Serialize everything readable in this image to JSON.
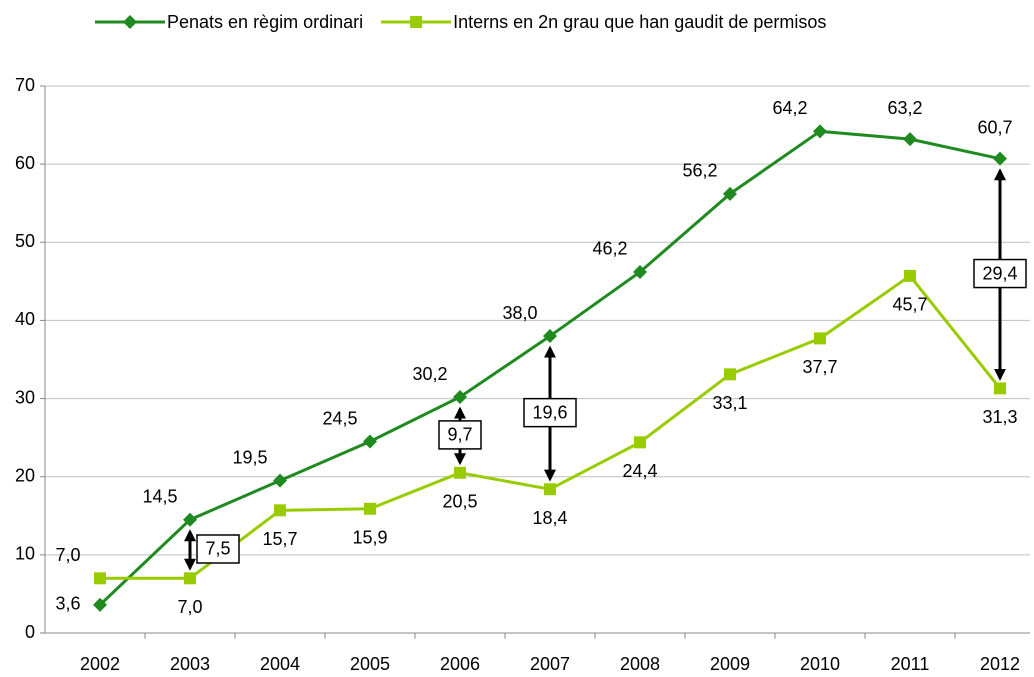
{
  "chart_data": {
    "type": "line",
    "categories": [
      "2002",
      "2003",
      "2004",
      "2005",
      "2006",
      "2007",
      "2008",
      "2009",
      "2010",
      "2011",
      "2012"
    ],
    "series": [
      {
        "name": "Penats en règim ordinari",
        "color": "#1f8a1f",
        "marker": "diamond",
        "values": [
          3.6,
          14.5,
          19.5,
          24.5,
          30.2,
          38.0,
          46.2,
          56.2,
          64.2,
          63.2,
          60.7
        ],
        "value_labels": [
          "3,6",
          "14,5",
          "19,5",
          "24,5",
          "30,2",
          "38,0",
          "46,2",
          "56,2",
          "64,2",
          "63,2",
          "60,7"
        ]
      },
      {
        "name": "Interns en 2n grau que han gaudit de permisos",
        "color": "#99cc00",
        "marker": "square",
        "values": [
          7.0,
          7.0,
          15.7,
          15.9,
          20.5,
          18.4,
          24.4,
          33.1,
          37.7,
          45.7,
          31.3
        ],
        "value_labels": [
          "7,0",
          "7,0",
          "15,7",
          "15,9",
          "20,5",
          "18,4",
          "24,4",
          "33,1",
          "37,7",
          "45,7",
          "31,3"
        ]
      }
    ],
    "annotations": [
      {
        "category": "2003",
        "value": 7.5,
        "label": "7,5"
      },
      {
        "category": "2006",
        "value": 9.7,
        "label": "9,7"
      },
      {
        "category": "2007",
        "value": 19.6,
        "label": "19,6"
      },
      {
        "category": "2012",
        "value": 29.4,
        "label": "29,4"
      }
    ],
    "ylim": [
      0,
      70
    ],
    "yticks": [
      0,
      10,
      20,
      30,
      40,
      50,
      60,
      70
    ],
    "grid": true,
    "legend": "top"
  }
}
